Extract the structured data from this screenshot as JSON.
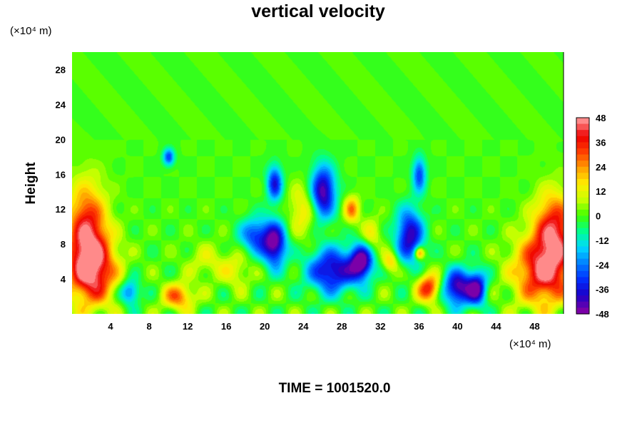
{
  "chart_data": {
    "type": "heatmap",
    "title": "vertical velocity",
    "ylabel": "Height",
    "xunit": "(×10⁴ m)",
    "yunit": "(×10⁴ m)",
    "x_ticks": [
      4,
      8,
      12,
      16,
      20,
      24,
      28,
      32,
      36,
      40,
      44,
      48
    ],
    "y_ticks": [
      4,
      8,
      12,
      16,
      20,
      24,
      28
    ],
    "xlim": [
      0,
      51
    ],
    "ylim": [
      0,
      30
    ],
    "colorbar": {
      "ticks": [
        48,
        36,
        24,
        12,
        0,
        -12,
        -24,
        -36,
        -48
      ],
      "range": [
        -48,
        48
      ],
      "levels": 32
    },
    "colormap": [
      "#7b00a8",
      "#1a00c8",
      "#0030ff",
      "#0080ff",
      "#00d8ff",
      "#00ff90",
      "#40ff00",
      "#c8ff00",
      "#ffee00",
      "#ffa000",
      "#ff4000",
      "#ee0000",
      "#ff8a8a"
    ],
    "features": [
      {
        "x": 2,
        "y": 5,
        "value": 44,
        "rx": 2.5,
        "ry": 4
      },
      {
        "x": 1.5,
        "y": 10,
        "value": 36,
        "rx": 2,
        "ry": 5
      },
      {
        "x": 49,
        "y": 5,
        "value": 44,
        "rx": 3,
        "ry": 4
      },
      {
        "x": 50,
        "y": 10,
        "value": 36,
        "rx": 2,
        "ry": 4
      },
      {
        "x": 11,
        "y": 2,
        "value": 28,
        "rx": 1.6,
        "ry": 1.5
      },
      {
        "x": 6,
        "y": 2.5,
        "value": -28,
        "rx": 1,
        "ry": 1.4
      },
      {
        "x": 10,
        "y": 18,
        "value": -30,
        "rx": 0.6,
        "ry": 1
      },
      {
        "x": 21,
        "y": 8,
        "value": -46,
        "rx": 1.2,
        "ry": 2.5
      },
      {
        "x": 19,
        "y": 9,
        "value": -30,
        "rx": 1.6,
        "ry": 2
      },
      {
        "x": 21,
        "y": 15,
        "value": -36,
        "rx": 0.8,
        "ry": 2
      },
      {
        "x": 26,
        "y": 14,
        "value": -46,
        "rx": 1.3,
        "ry": 3
      },
      {
        "x": 27,
        "y": 5,
        "value": -42,
        "rx": 2.5,
        "ry": 2.5
      },
      {
        "x": 30,
        "y": 6,
        "value": -48,
        "rx": 1.2,
        "ry": 2
      },
      {
        "x": 29,
        "y": 12,
        "value": 26,
        "rx": 0.8,
        "ry": 1.5
      },
      {
        "x": 31,
        "y": 9,
        "value": 14,
        "rx": 1,
        "ry": 2
      },
      {
        "x": 33,
        "y": 6,
        "value": 20,
        "rx": 0.8,
        "ry": 1.2
      },
      {
        "x": 35,
        "y": 9,
        "value": -42,
        "rx": 1.4,
        "ry": 3
      },
      {
        "x": 36,
        "y": 16,
        "value": -30,
        "rx": 0.7,
        "ry": 2
      },
      {
        "x": 37,
        "y": 3,
        "value": 36,
        "rx": 1.2,
        "ry": 1.6
      },
      {
        "x": 36,
        "y": 7,
        "value": 30,
        "rx": 0.5,
        "ry": 0.7
      },
      {
        "x": 40,
        "y": 3,
        "value": -46,
        "rx": 1.5,
        "ry": 2
      },
      {
        "x": 42,
        "y": 3,
        "value": -40,
        "rx": 1,
        "ry": 2
      },
      {
        "x": 24,
        "y": 12,
        "value": 16,
        "rx": 1.5,
        "ry": 3
      },
      {
        "x": 17,
        "y": 5,
        "value": 12,
        "rx": 1.5,
        "ry": 2
      },
      {
        "x": 14,
        "y": 6,
        "value": 10,
        "rx": 2,
        "ry": 2
      }
    ]
  },
  "footer": {
    "time_label": "TIME = 1001520.0"
  }
}
